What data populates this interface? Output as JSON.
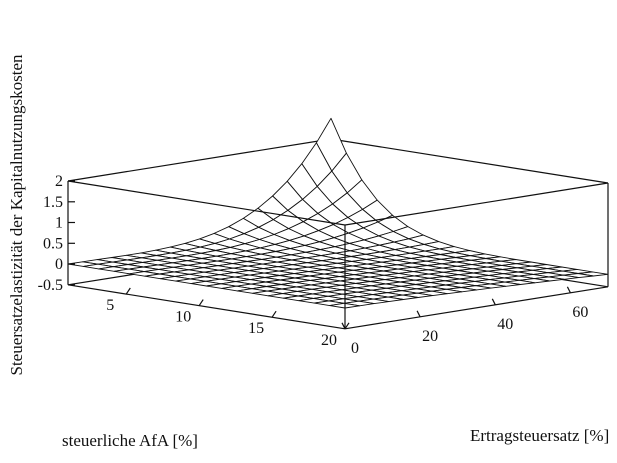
{
  "chart_data": {
    "type": "surface",
    "title": "",
    "xlabel": "Ertragsteuersatz [%]",
    "ylabel": "steuerliche AfA [%]",
    "zlabel": "Steuersatzelastizität der Kapitalnutzungskosten",
    "x_ticks": [
      "0",
      "20",
      "40",
      "60"
    ],
    "y_ticks": [
      "5",
      "10",
      "15",
      "20"
    ],
    "z_ticks": [
      "-0.5",
      "0",
      "0.5",
      "1",
      "1.5",
      "2"
    ],
    "xlim": [
      0,
      70
    ],
    "ylim": [
      1,
      20
    ],
    "zlim": [
      -0.5,
      2
    ],
    "grid_resolution": 18,
    "sample_values": {
      "x": [
        0,
        20,
        40,
        60,
        70
      ],
      "y_at_1": [
        0,
        0.05,
        0.2,
        0.9,
        2.5
      ],
      "y_at_20": [
        0,
        -0.02,
        -0.05,
        -0.12,
        -0.2
      ]
    },
    "grid": false,
    "legend": "none",
    "colors": {
      "surface_fill": "#ffffff",
      "line": "#111111"
    }
  }
}
